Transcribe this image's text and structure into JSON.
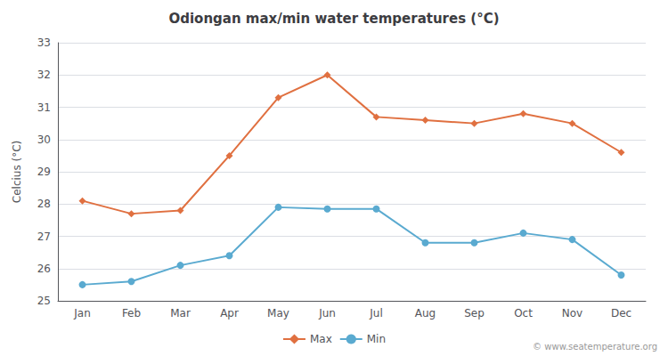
{
  "chart_data": {
    "type": "line",
    "title": "Odiongan max/min water temperatures (°C)",
    "ylabel": "Celcius (°C)",
    "categories": [
      "Jan",
      "Feb",
      "Mar",
      "Apr",
      "May",
      "Jun",
      "Jul",
      "Aug",
      "Sep",
      "Oct",
      "Nov",
      "Dec"
    ],
    "series": [
      {
        "name": "Max",
        "color": "#e07040",
        "marker": "diamond",
        "values": [
          28.1,
          27.7,
          27.8,
          29.5,
          31.3,
          32.0,
          30.7,
          30.6,
          30.5,
          30.8,
          30.5,
          29.6
        ]
      },
      {
        "name": "Min",
        "color": "#5aaad0",
        "marker": "circle",
        "values": [
          25.5,
          25.6,
          26.1,
          26.4,
          27.9,
          27.85,
          27.85,
          26.8,
          26.8,
          27.1,
          26.9,
          25.8
        ]
      }
    ],
    "ylim": [
      25,
      33
    ],
    "yticks": [
      25,
      26,
      27,
      28,
      29,
      30,
      31,
      32,
      33
    ],
    "grid": true,
    "legend": "bottom",
    "annotations": [
      "© www.seatemperature.org"
    ]
  }
}
